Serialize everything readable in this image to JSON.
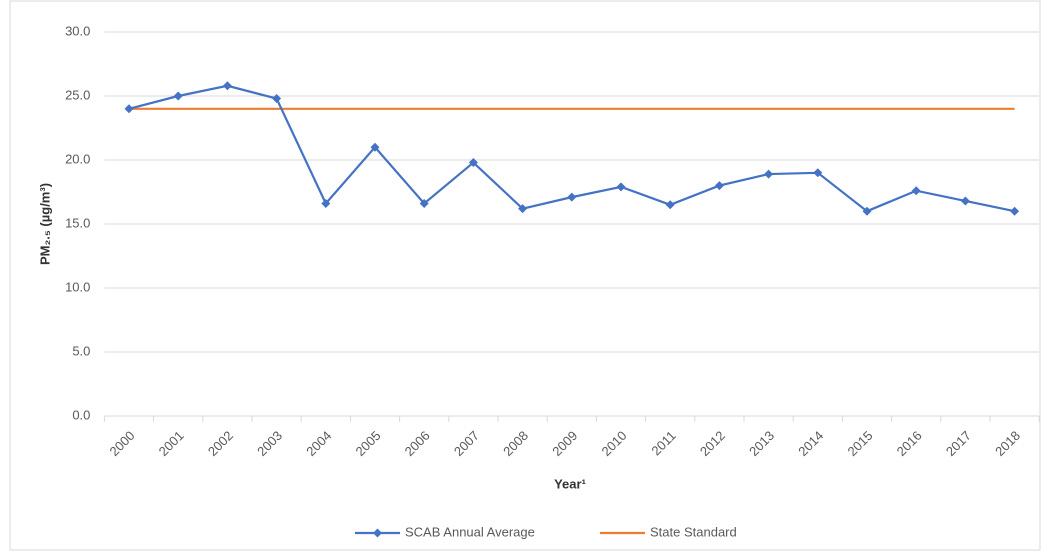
{
  "chart_data": {
    "type": "line",
    "y_label": "PM₂.₅ (µg/m³)",
    "x_label": "Year¹",
    "categories": [
      "2000",
      "2001",
      "2002",
      "2003",
      "2004",
      "2005",
      "2006",
      "2007",
      "2008",
      "2009",
      "2010",
      "2011",
      "2012",
      "2013",
      "2014",
      "2015",
      "2016",
      "2017",
      "2018"
    ],
    "series": [
      {
        "name": "SCAB Annual Average",
        "color": "#4472c4",
        "marker": "diamond",
        "values": [
          24.0,
          25.0,
          25.8,
          24.8,
          16.6,
          21.0,
          16.6,
          19.8,
          16.2,
          17.1,
          17.9,
          16.5,
          18.0,
          18.9,
          19.0,
          16.0,
          17.6,
          16.8,
          16.0
        ]
      },
      {
        "name": "State Standard",
        "color": "#ed7d31",
        "values": [
          24,
          24,
          24,
          24,
          24,
          24,
          24,
          24,
          24,
          24,
          24,
          24,
          24,
          24,
          24,
          24,
          24,
          24,
          24
        ]
      }
    ],
    "ylim": [
      0,
      30
    ],
    "yticks": [
      {
        "value": 0,
        "label": "0.0"
      },
      {
        "value": 5,
        "label": "5.0"
      },
      {
        "value": 10,
        "label": "10.0"
      },
      {
        "value": 15,
        "label": "15.0"
      },
      {
        "value": 20,
        "label": "20.0"
      },
      {
        "value": 25,
        "label": "25.0"
      },
      {
        "value": 30,
        "label": "30.0"
      }
    ],
    "grid": true,
    "legend": "bottom"
  }
}
